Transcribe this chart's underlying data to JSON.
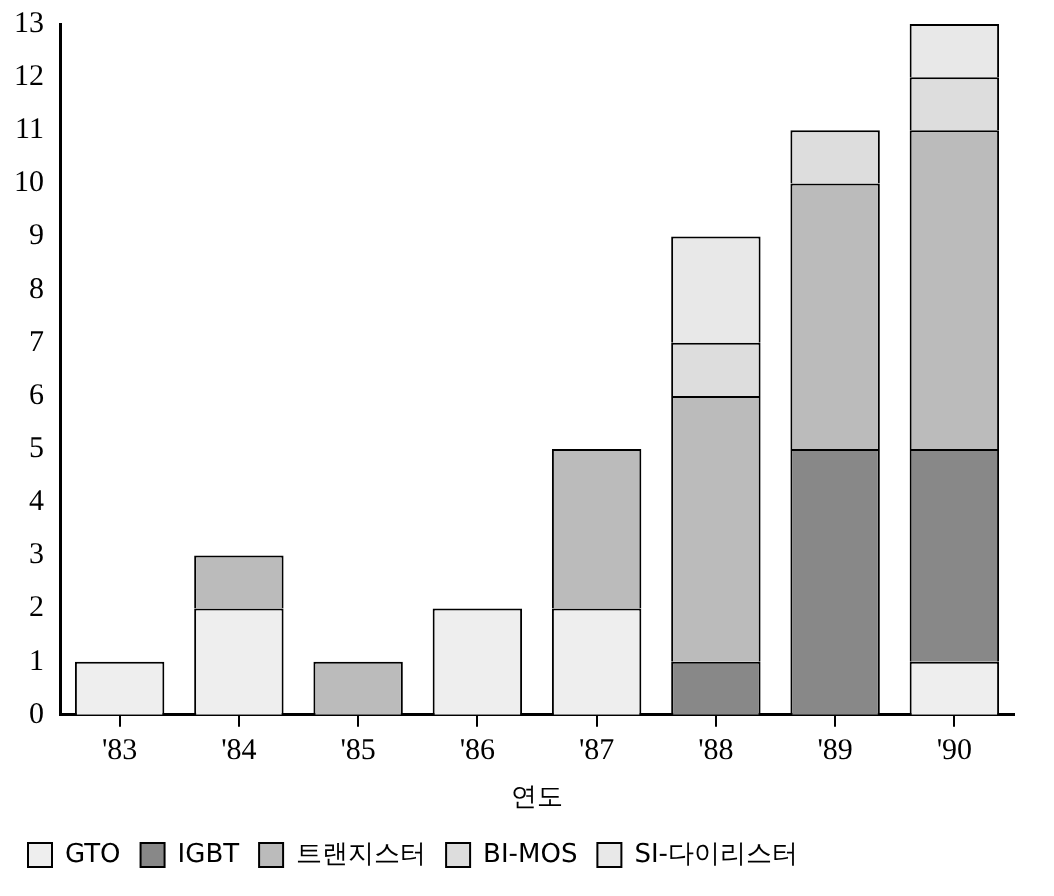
{
  "chart_data": {
    "type": "bar",
    "stacked": true,
    "xlabel": "연도",
    "categories": [
      "'83",
      "'84",
      "'85",
      "'86",
      "'87",
      "'88",
      "'89",
      "'90"
    ],
    "series": [
      {
        "name": "GTO",
        "color": "#eeeeee",
        "values": [
          1,
          2,
          null,
          2,
          2,
          null,
          null,
          1
        ]
      },
      {
        "name": "IGBT",
        "color": "#888888",
        "values": [
          null,
          null,
          null,
          null,
          null,
          1,
          5,
          4
        ]
      },
      {
        "name": "트랜지스터",
        "color": "#bbbbbb",
        "values": [
          null,
          1,
          1,
          null,
          3,
          5,
          5,
          6
        ]
      },
      {
        "name": "BI-MOS",
        "color": "#dddddd",
        "values": [
          null,
          null,
          null,
          null,
          null,
          1,
          1,
          1
        ]
      },
      {
        "name": "SI-다이리스터",
        "color": "#e8e8e8",
        "values": [
          null,
          null,
          null,
          null,
          null,
          2,
          null,
          1
        ]
      }
    ],
    "ylim": [
      0,
      13
    ],
    "yticks": [
      0,
      1,
      2,
      3,
      4,
      5,
      6,
      7,
      8,
      9,
      10,
      11,
      12,
      13
    ],
    "grid": false,
    "legend": "bottom"
  }
}
